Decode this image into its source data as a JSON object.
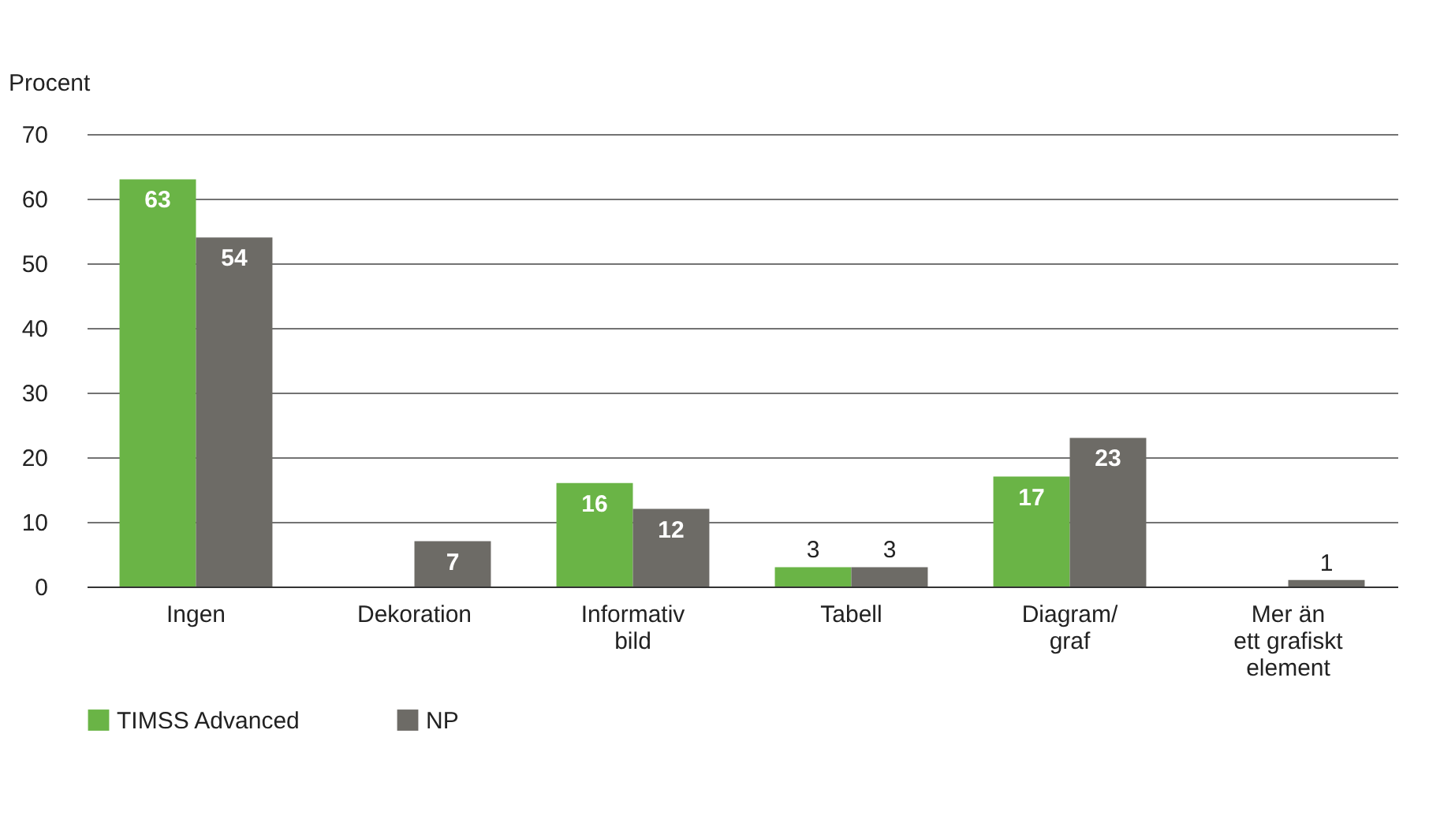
{
  "chart_data": {
    "type": "bar",
    "ylabel": "Procent",
    "categories": [
      "Ingen",
      "Dekoration",
      "Informativ\nbild",
      "Tabell",
      "Diagram/\ngraf",
      "Mer än\nett grafiskt\nelement"
    ],
    "series": [
      {
        "name": "TIMSS Advanced",
        "color": "#6ab446",
        "values": [
          63,
          null,
          16,
          3,
          17,
          null
        ]
      },
      {
        "name": "NP",
        "color": "#6d6b66",
        "values": [
          54,
          7,
          12,
          3,
          23,
          1
        ]
      }
    ],
    "ylim": [
      0,
      70
    ],
    "yticks": [
      0,
      10,
      20,
      30,
      40,
      50,
      60,
      70
    ],
    "grid": "y",
    "legend": "bottom left",
    "data_labels": true
  }
}
